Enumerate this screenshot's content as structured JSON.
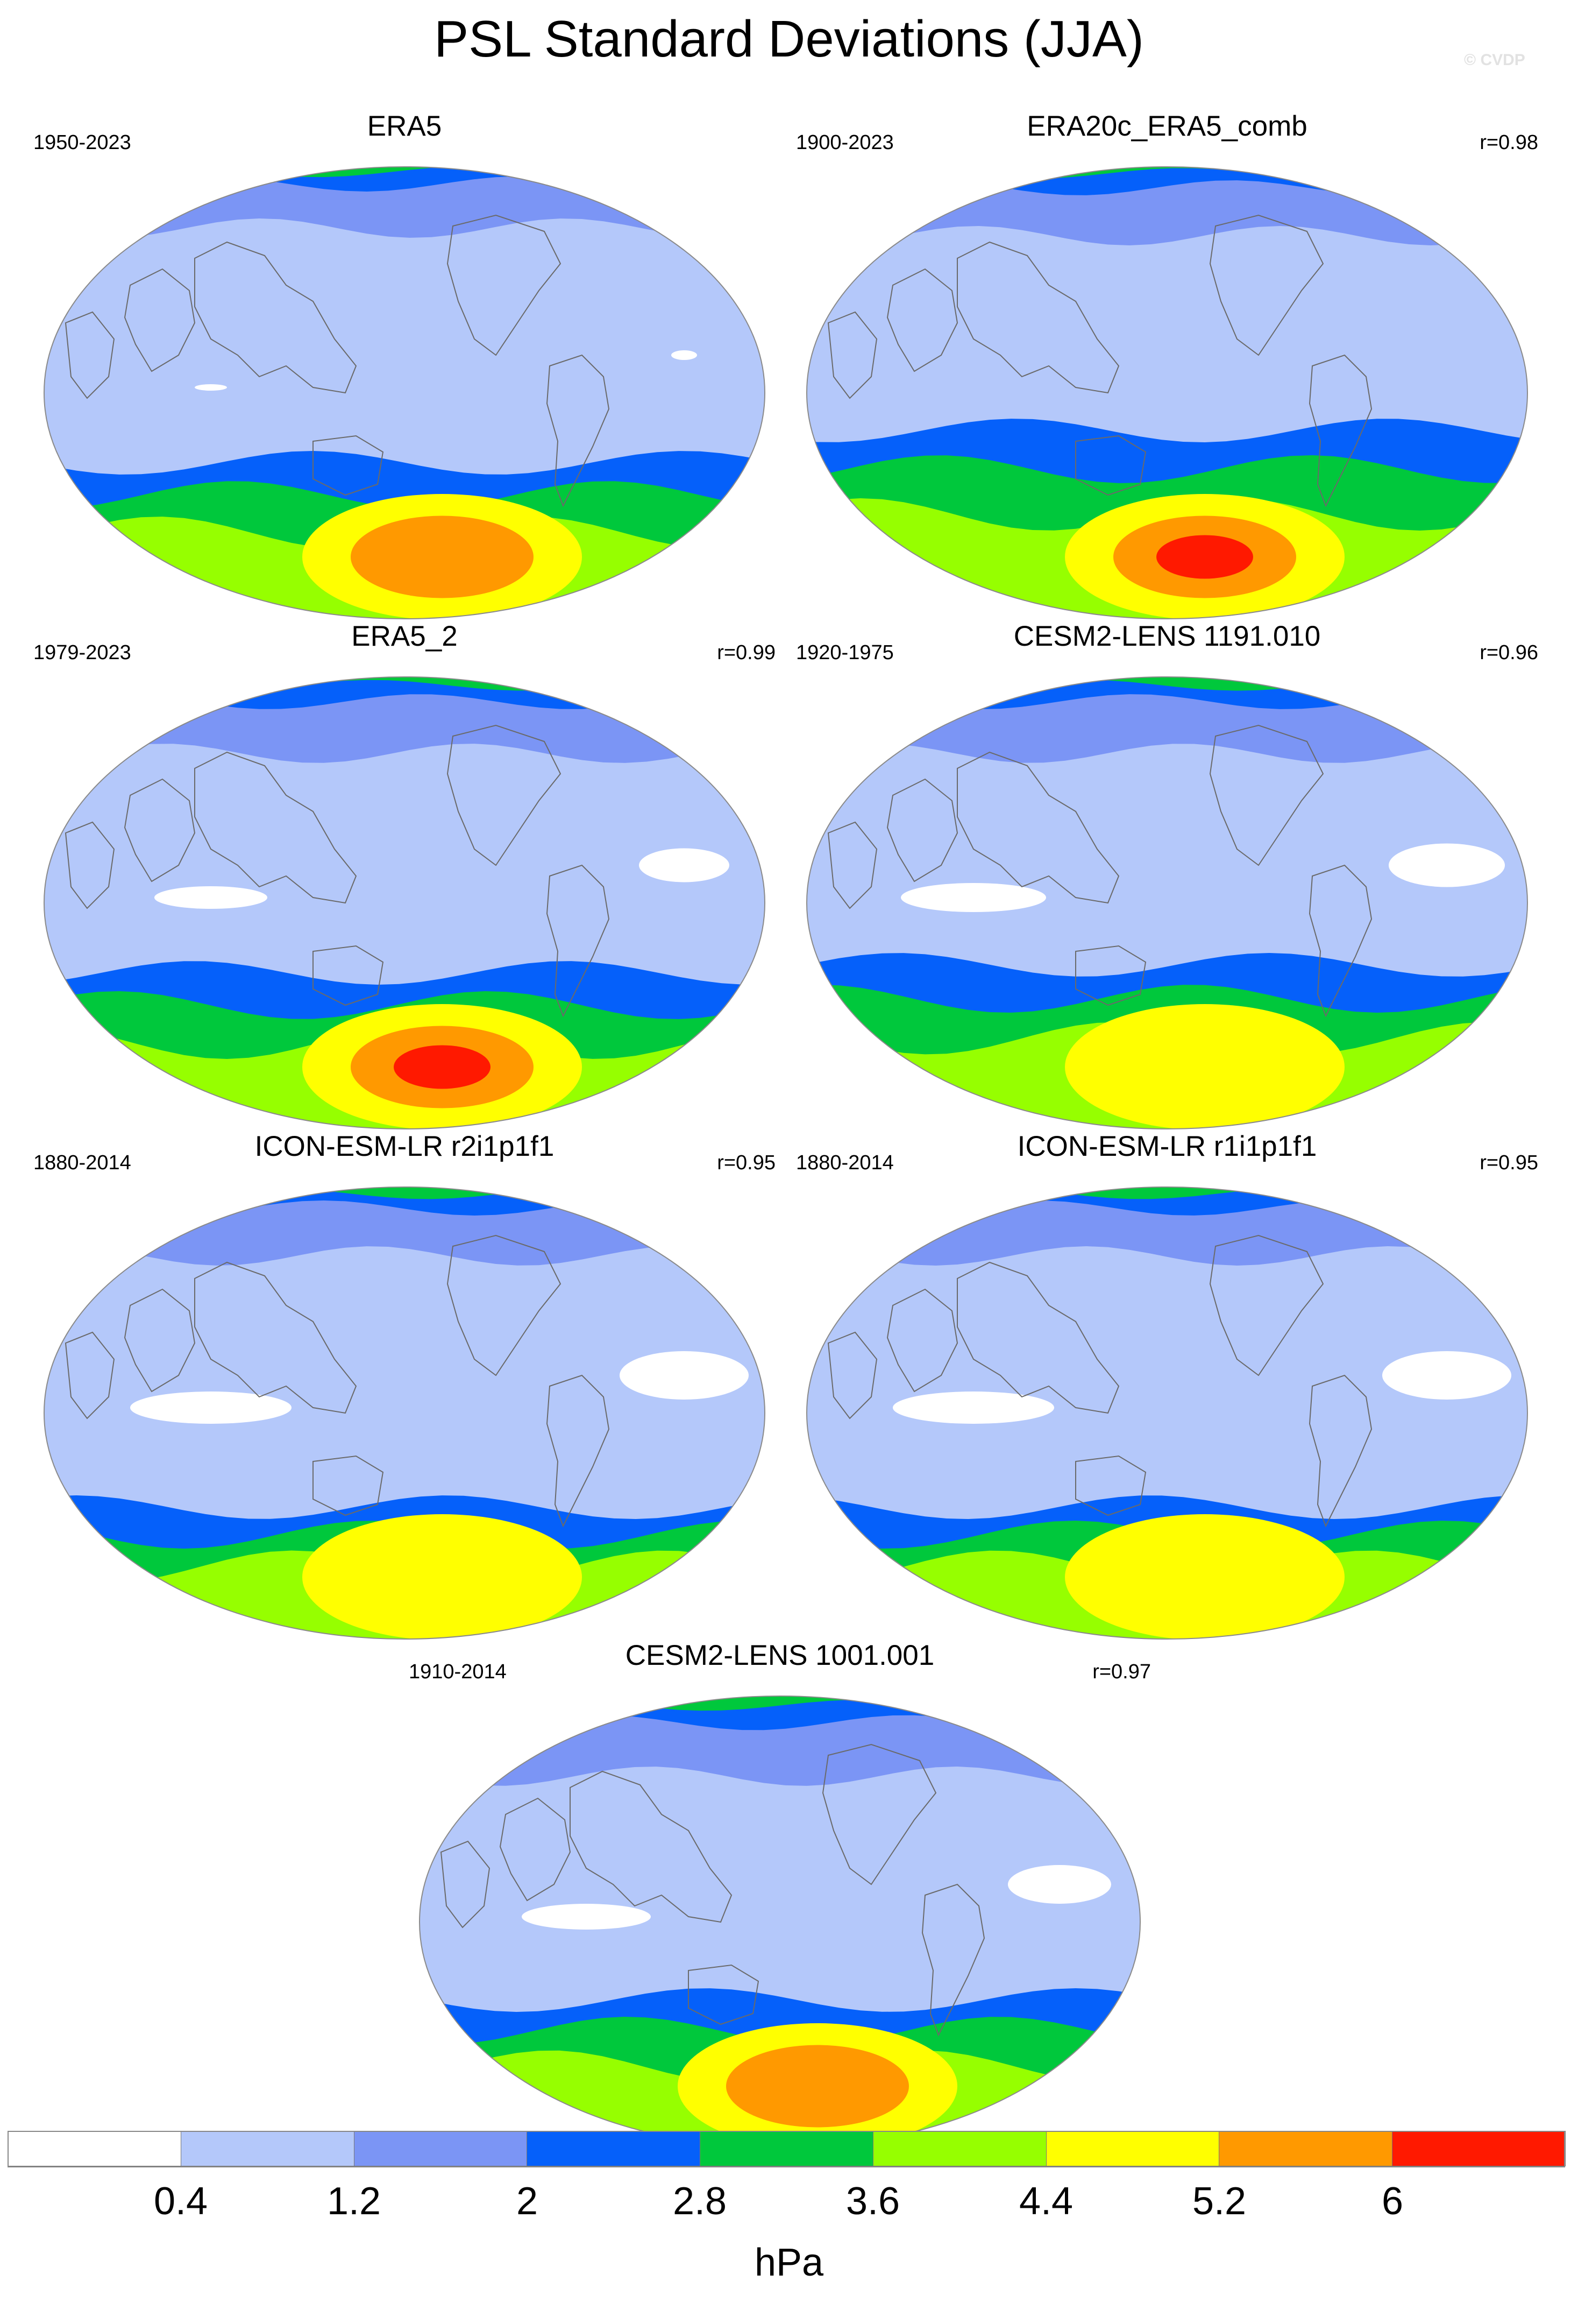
{
  "figure": {
    "title": "PSL Standard Deviations (JJA)",
    "watermark": "© CVDP"
  },
  "panels": [
    {
      "name": "ERA5",
      "years": "1950-2023",
      "corr": "",
      "peak": 5.6,
      "south": 1.0,
      "north": 0.6,
      "lowfill": 0.2
    },
    {
      "name": "ERA20c_ERA5_comb",
      "years": "1900-2023",
      "corr": "r=0.98",
      "peak": 6.5,
      "south": 1.2,
      "north": 0.7,
      "lowfill": 0.0
    },
    {
      "name": "ERA5_2",
      "years": "1979-2023",
      "corr": "r=0.99",
      "peak": 6.2,
      "south": 1.0,
      "north": 0.8,
      "lowfill": 0.7
    },
    {
      "name": "CESM2-LENS 1191.010",
      "years": "1920-1975",
      "corr": "r=0.96",
      "peak": 5.0,
      "south": 1.05,
      "north": 0.8,
      "lowfill": 0.9
    },
    {
      "name": "ICON-ESM-LR r2i1p1f1",
      "years": "1880-2014",
      "corr": "r=0.95",
      "peak": 4.8,
      "south": 0.85,
      "north": 0.7,
      "lowfill": 1.0
    },
    {
      "name": "ICON-ESM-LR r1i1p1f1",
      "years": "1880-2014",
      "corr": "r=0.95",
      "peak": 4.9,
      "south": 0.85,
      "north": 0.7,
      "lowfill": 1.0
    },
    {
      "name": "CESM2-LENS 1001.001",
      "years": "1910-2014",
      "corr": "r=0.97",
      "peak": 5.4,
      "south": 0.95,
      "north": 0.85,
      "lowfill": 0.8
    }
  ],
  "colorbar": {
    "levels": [
      "0.4",
      "1.2",
      "2",
      "2.8",
      "3.6",
      "4.4",
      "5.2",
      "6"
    ],
    "colors": [
      "#ffffff",
      "#b4c8fa",
      "#7b95f5",
      "#0560fa",
      "#00c83c",
      "#96ff00",
      "#ffff00",
      "#ff9900",
      "#ff1900"
    ],
    "units": "hPa"
  }
}
